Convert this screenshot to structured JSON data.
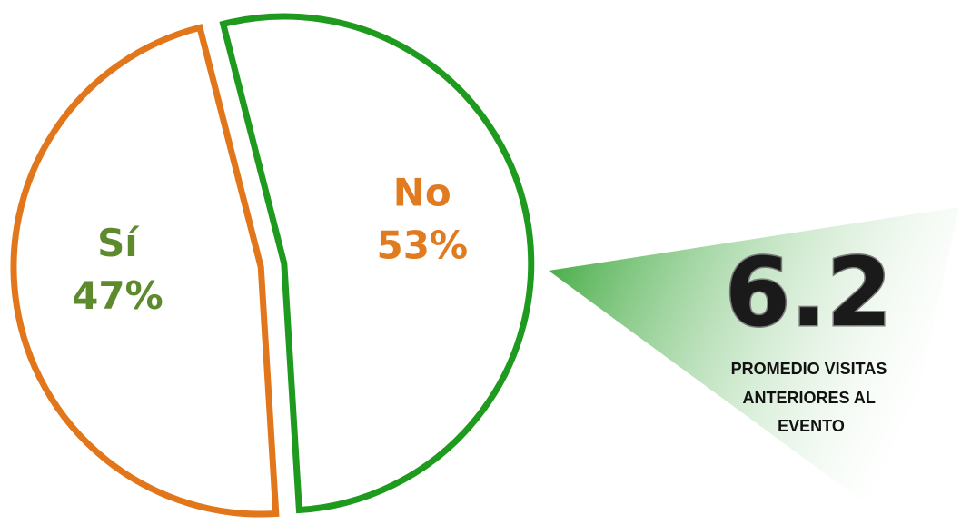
{
  "chart_data": {
    "type": "pie",
    "slices": [
      {
        "category": "No",
        "value": 53,
        "value_label": "53%",
        "outline_color": "#1e9a1e",
        "label_color": "#e07b1f"
      },
      {
        "category": "Sí",
        "value": 47,
        "value_label": "47%",
        "outline_color": "#e2761b",
        "label_color": "#5d8a2c"
      }
    ],
    "exploded": true
  },
  "stat": {
    "value": "6.2",
    "caption_lines": [
      "PROMEDIO VISITAS",
      "ANTERIORES AL",
      "EVENTO"
    ],
    "gradient_from": "#1e9a1e",
    "gradient_to": "#ffffff"
  }
}
